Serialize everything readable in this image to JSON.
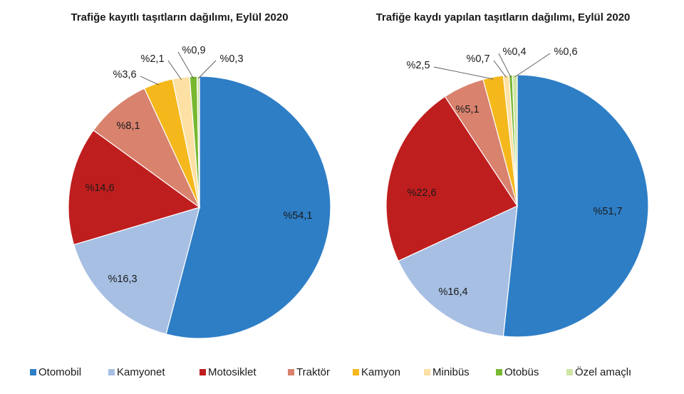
{
  "chart_data": [
    {
      "type": "pie",
      "title": "Trafiğe kayıtlı taşıtların dağılımı, Eylül 2020",
      "categories": [
        "Otomobil",
        "Kamyonet",
        "Motosiklet",
        "Traktör",
        "Kamyon",
        "Minibüs",
        "Otobüs",
        "Özel amaçlı"
      ],
      "values": [
        54.1,
        16.3,
        14.6,
        8.1,
        3.6,
        2.1,
        0.9,
        0.3
      ],
      "labels": [
        "%54,1",
        "%16,3",
        "%14,6",
        "%8,1",
        "%3,6",
        "%2,1",
        "%0,9",
        "%0,3"
      ]
    },
    {
      "type": "pie",
      "title": "Trafiğe kaydı yapılan taşıtların dağılımı, Eylül 2020",
      "categories": [
        "Otomobil",
        "Kamyonet",
        "Motosiklet",
        "Traktör",
        "Kamyon",
        "Minibüs",
        "Otobüs",
        "Özel amaçlı"
      ],
      "values": [
        51.7,
        16.4,
        22.6,
        5.1,
        2.5,
        0.7,
        0.4,
        0.6
      ],
      "labels": [
        "%51,7",
        "%16,4",
        "%22,6",
        "%5,1",
        "%2,5",
        "%0,7",
        "%0,4",
        "%0,6"
      ]
    }
  ],
  "legend": {
    "items": [
      "Otomobil",
      "Kamyonet",
      "Motosiklet",
      "Traktör",
      "Kamyon",
      "Minibüs",
      "Otobüs",
      "Özel amaçlı"
    ],
    "placement": "bottom"
  },
  "colors": [
    "#2e7ec6",
    "#a7bfe3",
    "#bf1e1e",
    "#d9826e",
    "#f5b81c",
    "#fde1a4",
    "#78b831",
    "#cfe5a5"
  ]
}
